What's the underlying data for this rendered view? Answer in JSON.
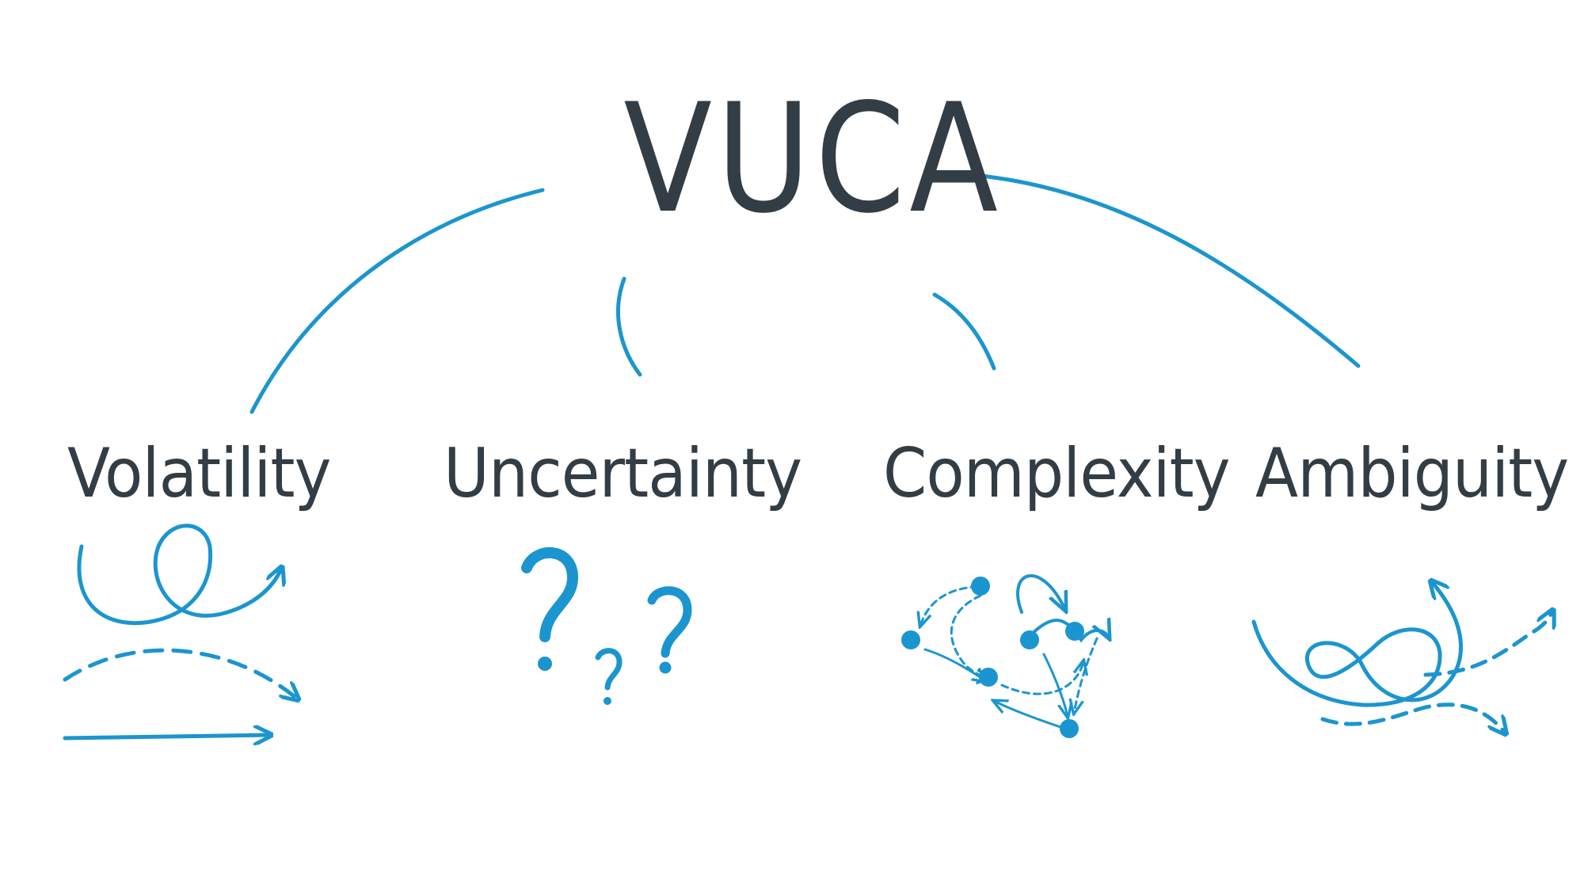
{
  "title": "VUCA",
  "terms": [
    "Volatility",
    "Uncertainty",
    "Complexity",
    "Ambiguity"
  ],
  "colors": {
    "accent": "#1b95cf",
    "text": "#333d45",
    "background": "#ffffff"
  },
  "icons": {
    "volatility": "loop-and-arrows-icon",
    "uncertainty": "question-marks-icon",
    "complexity": "network-nodes-icon",
    "ambiguity": "diverging-arrows-icon"
  }
}
